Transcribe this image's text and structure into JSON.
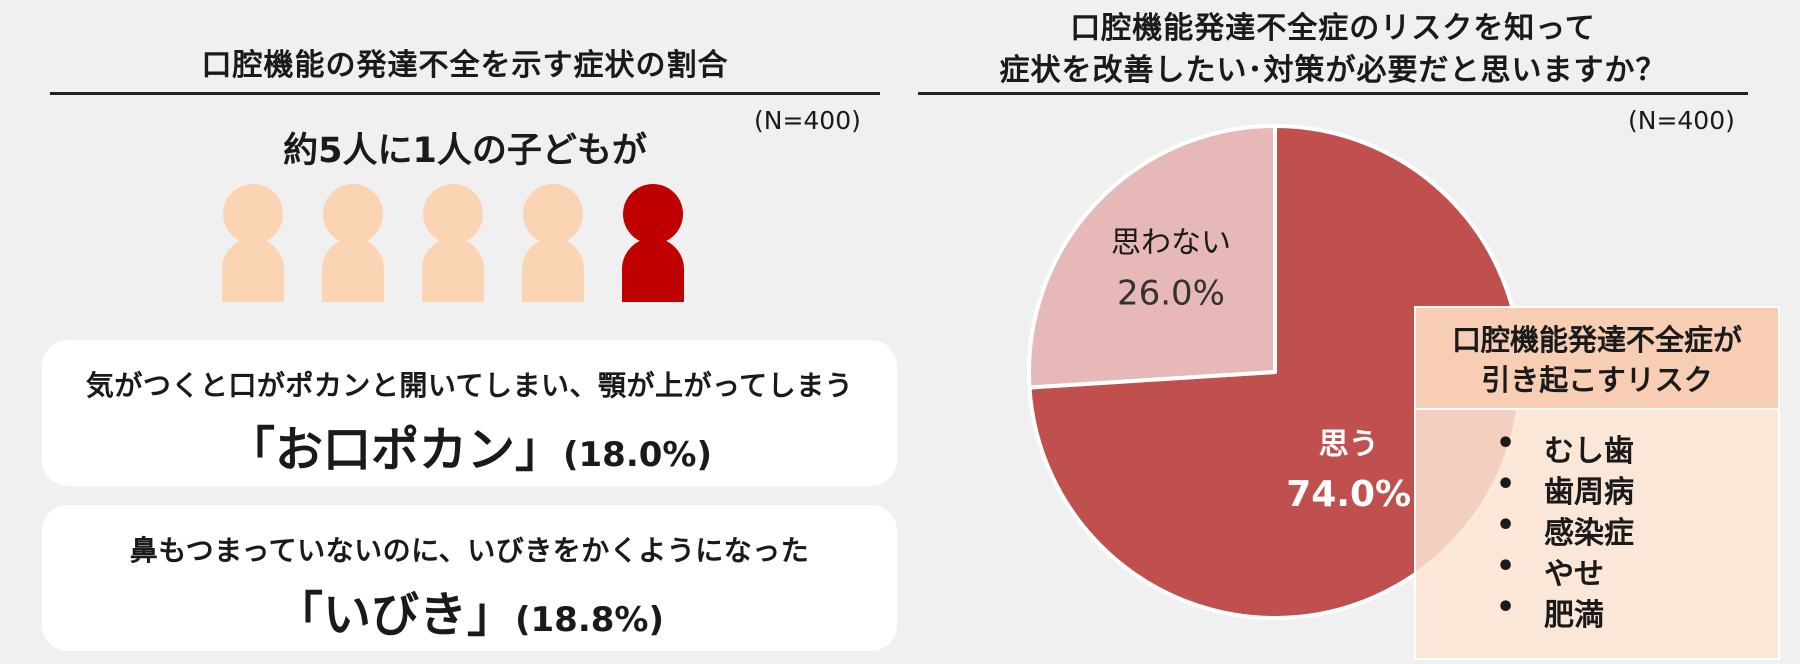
{
  "left": {
    "title": "口腔機能の発達不全を示す症状の割合",
    "n_label": "(N=400)",
    "headline": "約5人に1人の子どもが",
    "people": {
      "total": 5,
      "highlighted": 1,
      "base_color": "#fbd4b4",
      "highlight_color": "#c00000"
    },
    "cards": [
      {
        "description": "気がつくと口がポカンと開いてしまい、顎が上がってしまう",
        "name": "「お口ポカン」",
        "percent": "(18.0%)"
      },
      {
        "description": "鼻もつまっていないのに、いびきをかくようになった",
        "name": "「いびき」",
        "percent": "(18.8%)"
      }
    ]
  },
  "right": {
    "title_line1": "口腔機能発達不全症のリスクを知って",
    "title_line2": "症状を改善したい･対策が必要だと思いますか？",
    "n_label": "(N=400)",
    "risk_box": {
      "title_line1": "口腔機能発達不全症が",
      "title_line2": "引き起こすリスク",
      "bullet": "•",
      "items": [
        "むし歯",
        "歯周病",
        "感染症",
        "やせ",
        "肥満"
      ]
    }
  },
  "chart_data": [
    {
      "type": "pie",
      "title": "口腔機能発達不全症のリスクを知って症状を改善したい･対策が必要だと思いますか？",
      "categories": [
        "思う",
        "思わない"
      ],
      "values": [
        74.0,
        26.0
      ],
      "value_labels": [
        "74.0%",
        "26.0%"
      ],
      "colors": [
        "#c0504d",
        "#e6b9b8"
      ],
      "start_angle_deg": 0,
      "direction": "clockwise"
    }
  ]
}
